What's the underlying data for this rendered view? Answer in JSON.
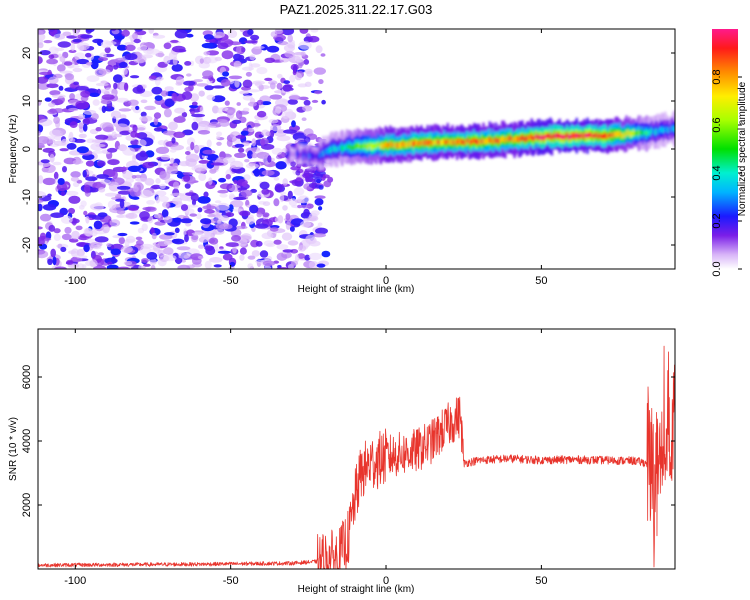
{
  "title": "PAZ1.2025.311.22.17.G03",
  "chart_data": [
    {
      "type": "heatmap",
      "xlabel": "Height of straight line (km)",
      "ylabel": "Frequency (Hz)",
      "xlim": [
        -112,
        93
      ],
      "ylim": [
        -25,
        25
      ],
      "xticks": [
        -100,
        -50,
        0,
        50
      ],
      "xtick_labels": [
        "-100",
        "-50",
        "0",
        "50"
      ],
      "yticks": [
        -20,
        -10,
        0,
        10,
        20
      ],
      "ytick_labels": [
        "-20",
        "-10",
        "0",
        "10",
        "20"
      ],
      "colorbar": {
        "label": "Normalized spectral amplitude",
        "range": [
          0,
          1
        ],
        "ticks": [
          0.0,
          0.2,
          0.4,
          0.6,
          0.8
        ],
        "tick_labels": [
          "0.0",
          "0.2",
          "0.4",
          "0.6",
          "0.8"
        ]
      },
      "ridge": {
        "x": [
          -30,
          -22,
          -18,
          -10,
          0,
          10,
          20,
          30,
          40,
          50,
          60,
          70,
          80,
          85,
          90,
          93
        ],
        "frequency": [
          -1,
          -1.5,
          0,
          0.5,
          0.8,
          1.2,
          1.5,
          1.6,
          2.0,
          2.6,
          2.7,
          2.8,
          3.2,
          3.6,
          4.0,
          4.2
        ],
        "amplitude": [
          0.15,
          0.25,
          0.35,
          0.55,
          0.75,
          0.8,
          0.8,
          0.85,
          0.8,
          0.95,
          0.95,
          0.9,
          0.6,
          0.4,
          0.3,
          0.3
        ]
      }
    },
    {
      "type": "line",
      "xlabel": "Height of straight line (km)",
      "ylabel": "SNR (10 * v/v)",
      "xlim": [
        -112,
        93
      ],
      "ylim": [
        0,
        7500
      ],
      "xticks": [
        -100,
        -50,
        0,
        50
      ],
      "xtick_labels": [
        "-100",
        "-50",
        "0",
        "50"
      ],
      "yticks": [
        2000,
        4000,
        6000
      ],
      "ytick_labels": [
        "2000",
        "4000",
        "6000"
      ],
      "color": "#e8342c",
      "series_envelope": {
        "x": [
          -112,
          -60,
          -30,
          -20,
          -15,
          -12,
          -10,
          -8,
          -5,
          0,
          5,
          10,
          15,
          20,
          24,
          25,
          30,
          40,
          50,
          60,
          70,
          80,
          84,
          86,
          88,
          89,
          90,
          91,
          92,
          93
        ],
        "y": [
          120,
          150,
          180,
          250,
          400,
          1000,
          2200,
          3000,
          3300,
          3500,
          3600,
          3700,
          4000,
          4500,
          4800,
          3300,
          3400,
          3450,
          3400,
          3420,
          3400,
          3380,
          3300,
          3000,
          2500,
          2800,
          4000,
          5000,
          4500,
          5200
        ]
      }
    }
  ]
}
